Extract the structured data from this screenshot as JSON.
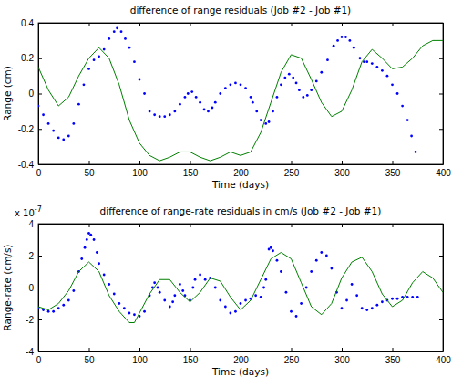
{
  "chart_data": [
    {
      "type": "scatter",
      "title": "difference of range residuals (Job #2 - Job #1)",
      "xlabel": "Time (days)",
      "ylabel": "Range (cm)",
      "xlim": [
        0,
        400
      ],
      "xticks": [
        0,
        50,
        100,
        150,
        200,
        250,
        300,
        350,
        400
      ],
      "ylim": [
        -0.4,
        0.4
      ],
      "yticks": [
        -0.4,
        -0.2,
        0,
        0.2,
        0.4
      ],
      "series": [
        {
          "type": "scatter",
          "marker": "dot",
          "color": "#0000ff",
          "x": [
            0,
            5,
            10,
            15,
            20,
            25,
            30,
            35,
            40,
            45,
            50,
            55,
            60,
            65,
            70,
            75,
            78,
            82,
            86,
            90,
            95,
            100,
            105,
            110,
            115,
            120,
            125,
            130,
            135,
            140,
            145,
            148,
            152,
            156,
            160,
            164,
            168,
            172,
            175,
            180,
            185,
            190,
            195,
            200,
            205,
            210,
            212,
            216,
            220,
            225,
            228,
            232,
            236,
            240,
            244,
            248,
            252,
            255,
            258,
            262,
            266,
            270,
            275,
            280,
            286,
            292,
            296,
            300,
            304,
            308,
            312,
            318,
            322,
            325,
            330,
            335,
            340,
            345,
            350,
            355,
            360,
            365,
            369,
            373
          ],
          "values": [
            -0.07,
            -0.12,
            -0.17,
            -0.21,
            -0.25,
            -0.26,
            -0.24,
            -0.17,
            -0.06,
            0.05,
            0.14,
            0.19,
            0.21,
            0.25,
            0.31,
            0.35,
            0.37,
            0.35,
            0.31,
            0.26,
            0.18,
            0.08,
            0.0,
            -0.1,
            -0.12,
            -0.13,
            -0.13,
            -0.12,
            -0.1,
            -0.06,
            -0.02,
            0.0,
            0.01,
            -0.02,
            -0.05,
            -0.09,
            -0.1,
            -0.08,
            -0.05,
            0.0,
            0.03,
            0.05,
            0.06,
            0.05,
            0.03,
            -0.02,
            -0.05,
            -0.1,
            -0.15,
            -0.17,
            -0.16,
            -0.1,
            -0.02,
            0.05,
            0.09,
            0.11,
            0.09,
            0.06,
            0.02,
            -0.02,
            -0.01,
            0.02,
            0.07,
            0.12,
            0.19,
            0.27,
            0.3,
            0.32,
            0.32,
            0.3,
            0.26,
            0.2,
            0.18,
            0.18,
            0.17,
            0.15,
            0.13,
            0.1,
            0.05,
            0.0,
            -0.07,
            -0.15,
            -0.24,
            -0.33
          ]
        },
        {
          "type": "line",
          "line_style": "solid",
          "color": "#008000",
          "x": [
            0,
            10,
            20,
            30,
            40,
            50,
            60,
            70,
            80,
            90,
            100,
            110,
            120,
            130,
            140,
            150,
            160,
            170,
            180,
            190,
            200,
            210,
            220,
            230,
            240,
            250,
            260,
            270,
            280,
            290,
            300,
            310,
            320,
            330,
            340,
            350,
            360,
            370,
            380,
            390,
            400
          ],
          "values": [
            0.15,
            0.02,
            -0.07,
            -0.02,
            0.1,
            0.2,
            0.26,
            0.2,
            0.05,
            -0.15,
            -0.28,
            -0.35,
            -0.38,
            -0.36,
            -0.33,
            -0.33,
            -0.36,
            -0.38,
            -0.36,
            -0.33,
            -0.35,
            -0.33,
            -0.22,
            -0.05,
            0.12,
            0.22,
            0.2,
            0.08,
            -0.05,
            -0.13,
            -0.1,
            0.02,
            0.18,
            0.25,
            0.2,
            0.14,
            0.15,
            0.2,
            0.27,
            0.3,
            0.3
          ]
        }
      ]
    },
    {
      "type": "scatter",
      "title": "difference of range-rate residuals in cm/s (Job #2 - Job #1)",
      "xlabel": "Time (days)",
      "ylabel": "Range-rate (cm/s)",
      "annotations": [
        {
          "text": "x 10",
          "superscript": "-7"
        }
      ],
      "xlim": [
        0,
        400
      ],
      "xticks": [
        0,
        50,
        100,
        150,
        200,
        250,
        300,
        350,
        400
      ],
      "ylim": [
        -4,
        4
      ],
      "yticks": [
        -4,
        -2,
        0,
        2,
        4
      ],
      "series": [
        {
          "type": "scatter",
          "marker": "dot",
          "color": "#0000ff",
          "x": [
            0,
            5,
            10,
            15,
            20,
            25,
            30,
            35,
            40,
            43,
            46,
            48,
            50,
            52,
            55,
            58,
            60,
            65,
            70,
            75,
            80,
            85,
            90,
            95,
            100,
            105,
            110,
            113,
            115,
            118,
            120,
            125,
            130,
            133,
            135,
            140,
            143,
            145,
            150,
            153,
            155,
            160,
            165,
            170,
            175,
            180,
            185,
            190,
            195,
            200,
            205,
            210,
            215,
            220,
            223,
            225,
            228,
            230,
            232,
            236,
            240,
            245,
            250,
            255,
            260,
            265,
            270,
            275,
            280,
            285,
            290,
            295,
            300,
            305,
            310,
            315,
            320,
            325,
            330,
            335,
            340,
            345,
            350,
            355,
            360,
            365,
            370,
            375
          ],
          "values": [
            -1.3,
            -1.4,
            -1.5,
            -1.5,
            -1.3,
            -1.1,
            -0.8,
            -0.2,
            1.0,
            1.8,
            2.5,
            3.0,
            3.4,
            3.3,
            3.0,
            2.2,
            1.5,
            0.8,
            0.2,
            -0.4,
            -1.0,
            -1.3,
            -1.6,
            -1.7,
            -1.8,
            -1.5,
            -0.5,
            0.0,
            0.3,
            0.0,
            -0.3,
            -0.8,
            -1.2,
            -0.9,
            -0.5,
            0.2,
            -0.2,
            -0.5,
            -0.8,
            0.0,
            0.5,
            0.8,
            0.5,
            0.6,
            0.0,
            -0.8,
            -1.2,
            -1.6,
            -1.5,
            -1.0,
            -0.8,
            -0.7,
            -0.5,
            -0.6,
            0.0,
            0.5,
            2.4,
            2.5,
            2.3,
            1.7,
            1.0,
            -0.3,
            -1.5,
            -1.8,
            -1.0,
            0.0,
            1.0,
            1.7,
            2.2,
            2.0,
            1.2,
            -0.3,
            -1.3,
            -0.8,
            0.2,
            -0.5,
            -1.3,
            -1.4,
            -1.3,
            -1.1,
            -0.9,
            -0.8,
            -0.7,
            -0.7,
            -0.6,
            -0.6,
            -0.6,
            -0.6
          ]
        },
        {
          "type": "line",
          "line_style": "solid",
          "color": "#008000",
          "x": [
            0,
            10,
            20,
            30,
            40,
            50,
            60,
            70,
            80,
            90,
            95,
            100,
            110,
            120,
            130,
            140,
            150,
            160,
            170,
            180,
            190,
            200,
            210,
            220,
            230,
            240,
            250,
            260,
            270,
            280,
            290,
            300,
            310,
            320,
            330,
            340,
            350,
            360,
            370,
            380,
            390,
            400
          ],
          "values": [
            -1.2,
            -1.4,
            -1.0,
            -0.2,
            1.0,
            1.6,
            1.0,
            -0.5,
            -1.5,
            -2.2,
            -2.2,
            -1.6,
            -0.4,
            0.5,
            0.5,
            -0.3,
            -0.9,
            -0.3,
            0.6,
            0.4,
            -0.6,
            -1.4,
            -0.8,
            0.5,
            1.8,
            2.2,
            1.8,
            0.3,
            -1.2,
            -1.7,
            -1.0,
            0.6,
            1.6,
            1.9,
            1.0,
            -0.4,
            -1.2,
            -0.8,
            0.3,
            1.0,
            0.6,
            -0.3
          ]
        }
      ]
    }
  ]
}
